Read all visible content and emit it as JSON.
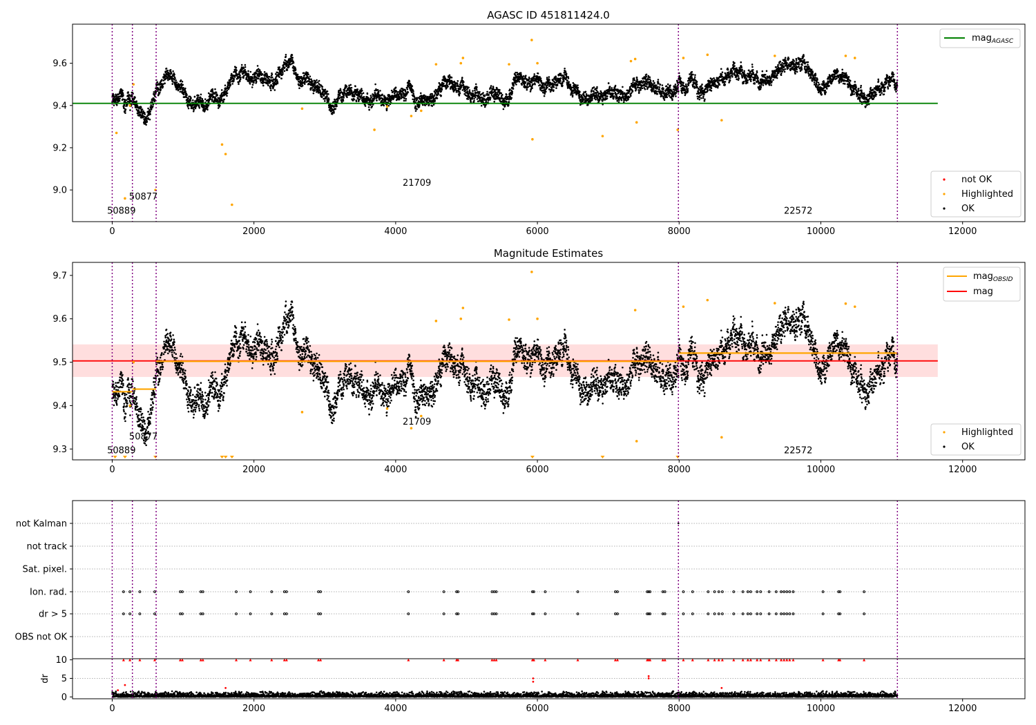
{
  "chart_data": [
    {
      "type": "scatter",
      "title": "AGASC ID 451811424.0",
      "xlabel": "",
      "ylabel": "",
      "xlim": [
        -560,
        12880
      ],
      "ylim": [
        8.85,
        9.785
      ],
      "xticks": [
        0,
        2000,
        4000,
        6000,
        8000,
        10000,
        12000
      ],
      "xtick_labels": [
        "0",
        "2000",
        "4000",
        "6000",
        "8000",
        "10000",
        "12000"
      ],
      "yticks": [
        9.0,
        9.2,
        9.4,
        9.6
      ],
      "ytick_labels": [
        "9.0",
        "9.2",
        "9.4",
        "9.6"
      ],
      "obsid_boundaries": [
        0,
        285,
        620,
        7990,
        11080
      ],
      "obsid_labels": [
        {
          "text": "50889",
          "x": 130,
          "y": 8.888
        },
        {
          "text": "50877",
          "x": 440,
          "y": 8.955
        },
        {
          "text": "21709",
          "x": 4300,
          "y": 9.02
        },
        {
          "text": "22572",
          "x": 9680,
          "y": 8.888
        }
      ],
      "reference_lines": [
        {
          "name": "mag_AGASC",
          "y": 9.41,
          "color": "#008000",
          "x": [
            -560,
            11650
          ]
        }
      ],
      "observation_means": [
        9.44,
        9.44,
        9.49,
        9.52
      ],
      "highlighted_points": [
        [
          60,
          9.27
        ],
        [
          180,
          8.96
        ],
        [
          250,
          9.4
        ],
        [
          300,
          9.5
        ],
        [
          610,
          9.0
        ],
        [
          1550,
          9.215
        ],
        [
          1600,
          9.17
        ],
        [
          1690,
          8.93
        ],
        [
          2680,
          9.385
        ],
        [
          3700,
          9.285
        ],
        [
          3880,
          9.395
        ],
        [
          4220,
          9.35
        ],
        [
          4360,
          9.375
        ],
        [
          4570,
          9.595
        ],
        [
          4920,
          9.6
        ],
        [
          4950,
          9.625
        ],
        [
          5600,
          9.595
        ],
        [
          5920,
          9.71
        ],
        [
          5930,
          9.24
        ],
        [
          6000,
          9.6
        ],
        [
          6920,
          9.255
        ],
        [
          7320,
          9.61
        ],
        [
          7380,
          9.62
        ],
        [
          7400,
          9.32
        ],
        [
          7980,
          9.285
        ],
        [
          8060,
          9.625
        ],
        [
          8400,
          9.64
        ],
        [
          8600,
          9.33
        ],
        [
          9350,
          9.635
        ],
        [
          10350,
          9.635
        ],
        [
          10480,
          9.625
        ]
      ],
      "not_ok_points": [],
      "legends": [
        {
          "position": "upper right",
          "entries": [
            {
              "label": "mag",
              "label_sub": "AGASC",
              "type": "line",
              "color": "#008000"
            }
          ]
        },
        {
          "position": "lower right",
          "entries": [
            {
              "label": "not OK",
              "type": "marker",
              "color": "#ff0000"
            },
            {
              "label": "Highlighted",
              "type": "marker",
              "color": "#ffa500"
            },
            {
              "label": "OK",
              "type": "marker",
              "color": "#000000"
            }
          ]
        }
      ]
    },
    {
      "type": "scatter",
      "title": "Magnitude Estimates",
      "xlabel": "",
      "ylabel": "",
      "xlim": [
        -560,
        12880
      ],
      "ylim": [
        9.275,
        9.73
      ],
      "xticks": [
        0,
        2000,
        4000,
        6000,
        8000,
        10000,
        12000
      ],
      "xtick_labels": [
        "0",
        "2000",
        "4000",
        "6000",
        "8000",
        "10000",
        "12000"
      ],
      "yticks": [
        9.3,
        9.4,
        9.5,
        9.6,
        9.7
      ],
      "ytick_labels": [
        "9.3",
        "9.4",
        "9.5",
        "9.6",
        "9.7"
      ],
      "obsid_boundaries": [
        0,
        285,
        620,
        7990,
        11080
      ],
      "obsid_labels": [
        {
          "text": "50889",
          "x": 130,
          "y": 9.29
        },
        {
          "text": "50877",
          "x": 440,
          "y": 9.322
        },
        {
          "text": "21709",
          "x": 4300,
          "y": 9.356
        },
        {
          "text": "22572",
          "x": 9680,
          "y": 9.29
        }
      ],
      "mean_line": {
        "name": "mag",
        "y": 9.503,
        "color": "#ff0000",
        "x": [
          -560,
          11650
        ]
      },
      "mean_band": [
        9.466,
        9.541
      ],
      "obsid_mean_segments": [
        {
          "x": [
            0,
            285
          ],
          "y": 9.432
        },
        {
          "x": [
            285,
            620
          ],
          "y": 9.438
        },
        {
          "x": [
            620,
            7990
          ],
          "y": 9.502
        },
        {
          "x": [
            7990,
            11080
          ],
          "y": 9.521
        }
      ],
      "highlighted_points": [
        [
          250,
          9.4
        ],
        [
          300,
          9.5
        ],
        [
          2680,
          9.385
        ],
        [
          3880,
          9.393
        ],
        [
          4220,
          9.348
        ],
        [
          4360,
          9.376
        ],
        [
          4570,
          9.595
        ],
        [
          4920,
          9.6
        ],
        [
          4950,
          9.625
        ],
        [
          5600,
          9.598
        ],
        [
          5920,
          9.708
        ],
        [
          6000,
          9.6
        ],
        [
          7380,
          9.62
        ],
        [
          7400,
          9.318
        ],
        [
          8060,
          9.628
        ],
        [
          8400,
          9.643
        ],
        [
          8600,
          9.327
        ],
        [
          9350,
          9.636
        ],
        [
          10350,
          9.635
        ],
        [
          10480,
          9.628
        ]
      ],
      "clipped_markers_x": [
        40,
        180,
        610,
        1550,
        1600,
        1690,
        5930,
        6920,
        7980
      ],
      "legends": [
        {
          "position": "upper right",
          "entries": [
            {
              "label": "mag",
              "label_sub": "OBSID",
              "type": "line",
              "color": "#ffa500"
            },
            {
              "label": "mag",
              "type": "line",
              "color": "#ff0000"
            }
          ]
        },
        {
          "position": "lower right",
          "entries": [
            {
              "label": "Highlighted",
              "type": "marker",
              "color": "#ffa500"
            },
            {
              "label": "OK",
              "type": "marker",
              "color": "#000000"
            }
          ]
        }
      ]
    },
    {
      "type": "scatter",
      "title": "",
      "xlabel": "",
      "ylabel": "",
      "xlim": [
        -560,
        12880
      ],
      "categories": [
        "not Kalman",
        "not track",
        "Sat. pixel.",
        "Ion. rad.",
        "dr > 5",
        "OBS not OK"
      ],
      "obsid_boundaries": [
        0,
        285,
        620,
        7990,
        11080
      ],
      "flag_x": [
        160,
        250,
        390,
        600,
        960,
        990,
        1250,
        1280,
        1750,
        1950,
        2250,
        2430,
        2460,
        2910,
        2940,
        4180,
        4680,
        4860,
        4880,
        5360,
        5390,
        5420,
        5930,
        5950,
        6110,
        6570,
        7100,
        7130,
        7550,
        7570,
        7590,
        7770,
        7800,
        8060,
        8190,
        8410,
        8500,
        8560,
        8610,
        8770,
        8900,
        8970,
        9010,
        9100,
        9150,
        9270,
        9370,
        9440,
        9480,
        9520,
        9560,
        9610,
        10030,
        10250,
        10270,
        10610
      ],
      "kalman_flags_x": [
        7990
      ]
    },
    {
      "type": "scatter",
      "title": "",
      "xlabel": "",
      "ylabel": "dr",
      "xlim": [
        -560,
        12880
      ],
      "ylim": [
        -0.5,
        10.3
      ],
      "yticks": [
        0,
        5,
        10
      ],
      "ytick_labels": [
        "0",
        "5",
        "10"
      ],
      "xticks": [
        0,
        2000,
        4000,
        6000,
        8000,
        10000,
        12000
      ],
      "xtick_labels": [
        "0",
        "2000",
        "4000",
        "6000",
        "8000",
        "10000",
        "12000"
      ],
      "obsid_boundaries": [
        0,
        285,
        620,
        7990,
        11080
      ],
      "typical_dr": [
        0,
        1.2
      ],
      "clipped_x": [
        160,
        250,
        390,
        600,
        960,
        990,
        1250,
        1280,
        1750,
        1950,
        2250,
        2430,
        2460,
        2910,
        2940,
        4180,
        4680,
        4860,
        4880,
        5360,
        5390,
        5420,
        5930,
        5950,
        6110,
        6570,
        7100,
        7130,
        7550,
        7570,
        7590,
        7770,
        7800,
        8060,
        8190,
        8410,
        8500,
        8560,
        8610,
        8770,
        8900,
        8970,
        9010,
        9100,
        9150,
        9270,
        9370,
        9440,
        9480,
        9520,
        9560,
        9610,
        10030,
        10250,
        10270,
        10610
      ],
      "outliers": [
        [
          80,
          1.8
        ],
        [
          180,
          3.2
        ],
        [
          1600,
          2.4
        ],
        [
          5940,
          5.0
        ],
        [
          5940,
          4.1
        ],
        [
          7570,
          5.6
        ],
        [
          7570,
          5.0
        ],
        [
          8600,
          2.4
        ]
      ],
      "clip_value": 10
    }
  ]
}
